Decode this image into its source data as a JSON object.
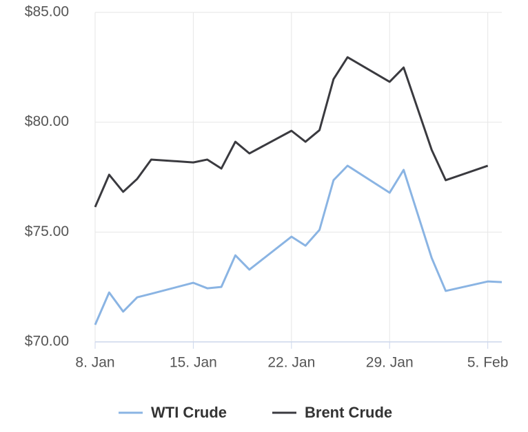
{
  "chart_data": {
    "type": "line",
    "x": [
      "8. Jan",
      "9. Jan",
      "10. Jan",
      "11. Jan",
      "12. Jan",
      "15. Jan",
      "16. Jan",
      "17. Jan",
      "18. Jan",
      "19. Jan",
      "22. Jan",
      "23. Jan",
      "24. Jan",
      "25. Jan",
      "26. Jan",
      "29. Jan",
      "30. Jan",
      "1. Feb",
      "2. Feb",
      "5. Feb",
      "6. Feb"
    ],
    "series": [
      {
        "name": "WTI Crude",
        "color": "#8ab4e3",
        "values": [
          70.78,
          72.25,
          71.38,
          72.03,
          72.19,
          72.69,
          72.44,
          72.5,
          73.94,
          73.29,
          74.79,
          74.38,
          75.1,
          77.36,
          78.02,
          76.79,
          77.83,
          73.82,
          72.32,
          72.75,
          72.72
        ]
      },
      {
        "name": "Brent Crude",
        "color": "#3a3a3f",
        "values": [
          76.14,
          77.61,
          76.83,
          77.42,
          78.3,
          78.17,
          78.3,
          77.89,
          79.11,
          78.58,
          79.61,
          79.11,
          79.64,
          81.96,
          82.96,
          81.84,
          82.49,
          78.74,
          77.36,
          78.02,
          null
        ]
      }
    ],
    "xlim": [
      "8. Jan",
      "6. Feb"
    ],
    "xticks": [
      "8. Jan",
      "15. Jan",
      "22. Jan",
      "29. Jan",
      "5. Feb"
    ],
    "ylim": [
      70,
      85
    ],
    "yticks": [
      {
        "value": 70,
        "label": "$70.00"
      },
      {
        "value": 75,
        "label": "$75.00"
      },
      {
        "value": 80,
        "label": "$80.00"
      },
      {
        "value": 85,
        "label": "$85.00"
      }
    ],
    "grid": true
  }
}
